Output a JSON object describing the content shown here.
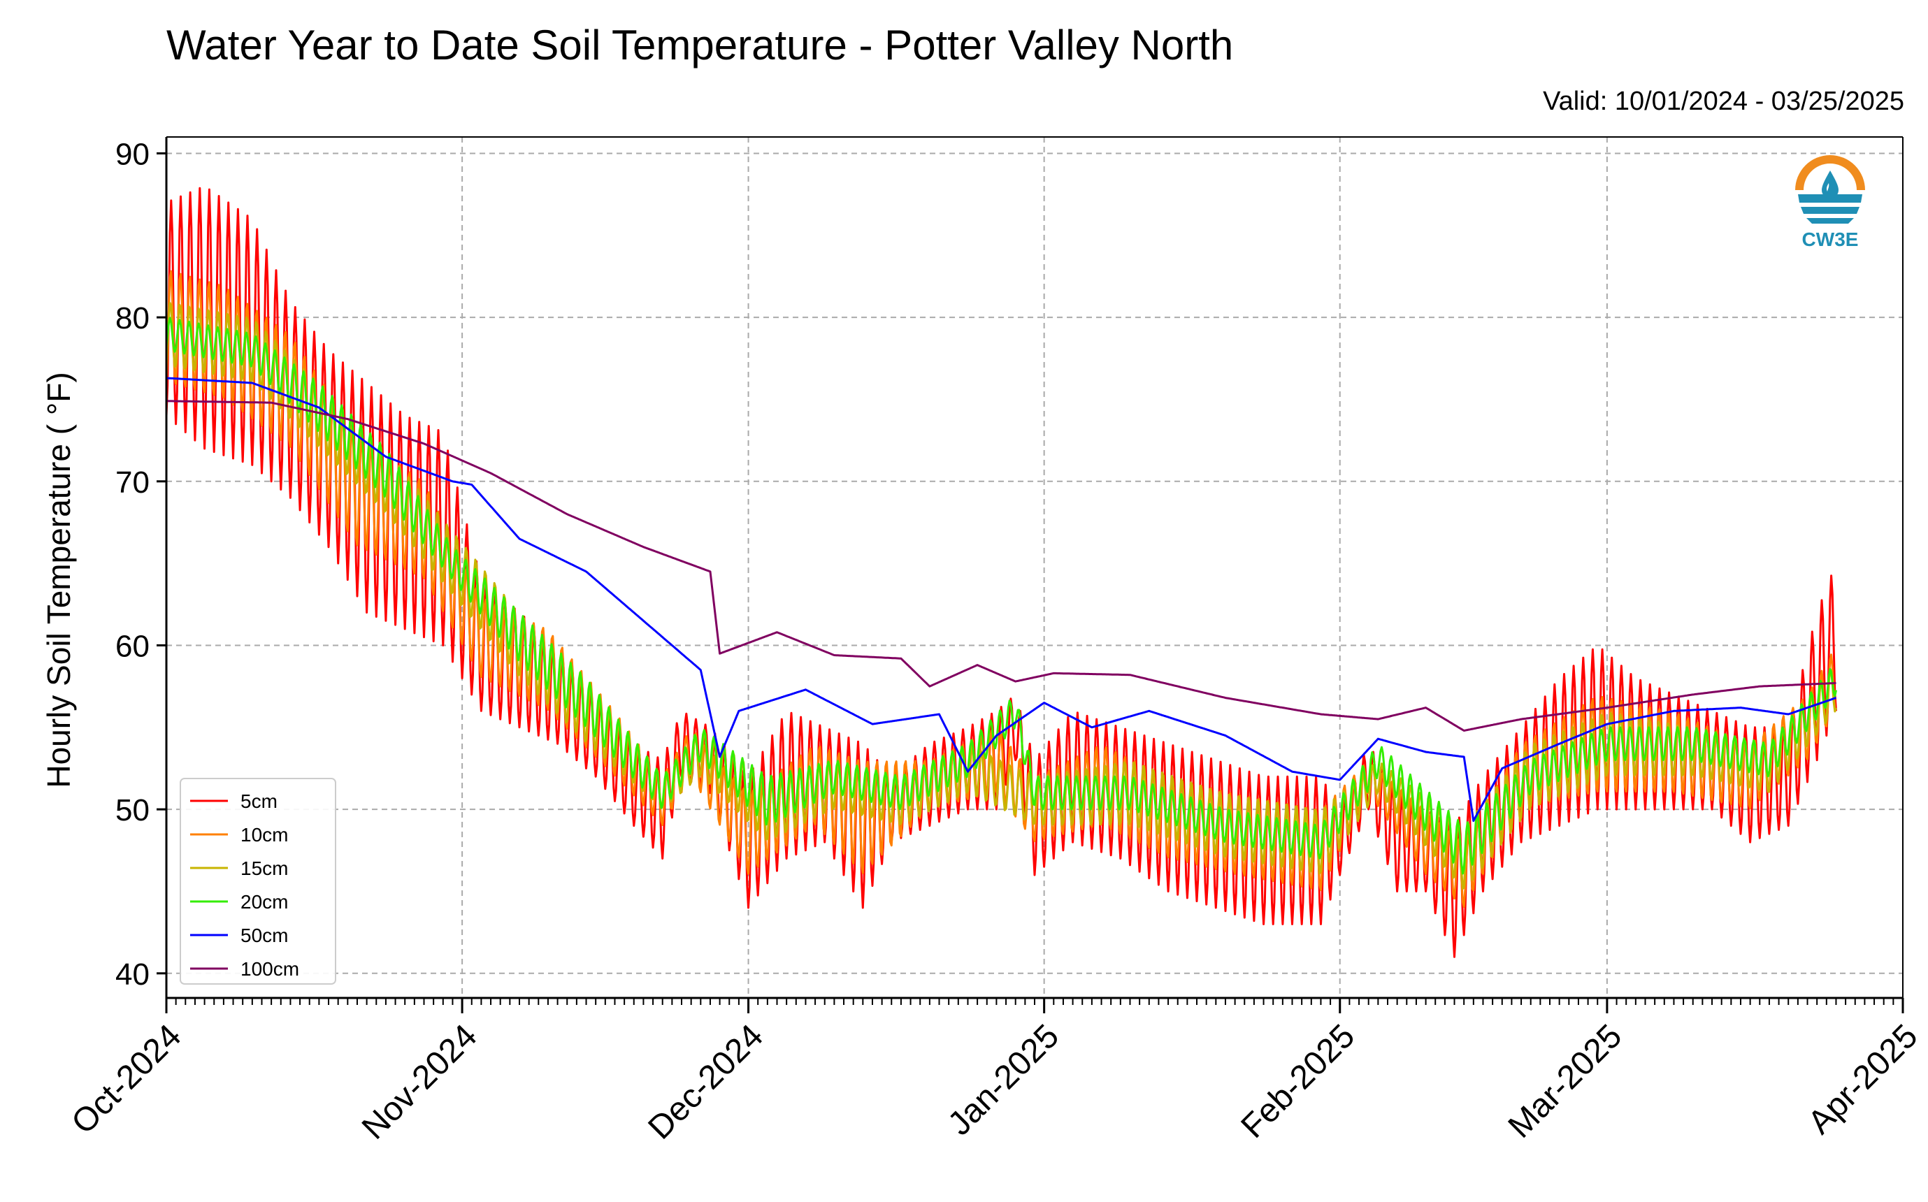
{
  "title": "Water Year to Date Soil Temperature - Potter Valley North",
  "valid_text": "Valid: 10/01/2024 - 03/25/2025",
  "logo_text": "CW3E",
  "logo_icon": "water-drop-sun-icon",
  "chart_data": {
    "type": "line",
    "title": "Water Year to Date Soil Temperature - Potter Valley North",
    "subtitle": "Valid: 10/01/2024 - 03/25/2025",
    "xlabel": "",
    "ylabel": "Hourly Soil Temperature ( $^\\circ$F)",
    "ylabel_display": "Hourly Soil Temperature ( °F)",
    "x_range": [
      "2024-10-01",
      "2025-04-01"
    ],
    "ylim": [
      38.5,
      91
    ],
    "yticks": [
      40,
      50,
      60,
      70,
      80,
      90
    ],
    "xtick_labels": [
      "Oct-2024",
      "Nov-2024",
      "Dec-2024",
      "Jan-2025",
      "Feb-2025",
      "Mar-2025",
      "Apr-2025"
    ],
    "xtick_dates": [
      "2024-10-01",
      "2024-11-01",
      "2024-12-01",
      "2025-01-01",
      "2025-02-01",
      "2025-03-01",
      "2025-04-01"
    ],
    "grid": true,
    "legend_position": "lower-left",
    "note": "Series are daily oscillating hourly readings; points give daily min/max envelope (lo, hi) in °F.",
    "series": [
      {
        "name": "5cm",
        "color": "#ff0000",
        "points": [
          [
            "2024-10-01",
            74,
            87
          ],
          [
            "2024-10-05",
            72,
            88
          ],
          [
            "2024-10-10",
            71,
            86
          ],
          [
            "2024-10-14",
            69,
            81
          ],
          [
            "2024-10-18",
            66,
            78
          ],
          [
            "2024-10-22",
            62,
            76
          ],
          [
            "2024-10-26",
            61,
            74
          ],
          [
            "2024-10-30",
            60,
            73
          ],
          [
            "2024-11-03",
            56,
            64
          ],
          [
            "2024-11-07",
            55,
            62
          ],
          [
            "2024-11-11",
            54,
            60
          ],
          [
            "2024-11-15",
            52,
            57
          ],
          [
            "2024-11-19",
            49,
            54
          ],
          [
            "2024-11-22",
            47,
            53
          ],
          [
            "2024-11-24",
            52,
            56
          ],
          [
            "2024-11-27",
            51,
            55
          ],
          [
            "2024-12-01",
            44,
            52
          ],
          [
            "2024-12-05",
            47,
            56
          ],
          [
            "2024-12-09",
            48,
            55
          ],
          [
            "2024-12-13",
            44,
            54
          ],
          [
            "2024-12-16",
            48,
            52
          ],
          [
            "2024-12-20",
            49,
            54
          ],
          [
            "2024-12-24",
            50,
            55
          ],
          [
            "2024-12-27",
            50,
            56
          ],
          [
            "2024-12-29",
            53,
            57
          ],
          [
            "2024-12-31",
            46,
            53
          ],
          [
            "2025-01-04",
            48,
            56
          ],
          [
            "2025-01-09",
            47,
            55
          ],
          [
            "2025-01-14",
            45,
            54
          ],
          [
            "2025-01-19",
            44,
            53
          ],
          [
            "2025-01-24",
            43,
            52
          ],
          [
            "2025-01-30",
            43,
            52
          ],
          [
            "2025-02-01",
            46,
            50
          ],
          [
            "2025-02-04",
            50,
            54
          ],
          [
            "2025-02-07",
            45,
            51
          ],
          [
            "2025-02-10",
            45,
            50
          ],
          [
            "2025-02-13",
            41,
            49
          ],
          [
            "2025-02-16",
            45,
            52
          ],
          [
            "2025-02-20",
            48,
            55
          ],
          [
            "2025-02-24",
            49,
            58
          ],
          [
            "2025-02-28",
            50,
            60
          ],
          [
            "2025-03-04",
            50,
            58
          ],
          [
            "2025-03-08",
            50,
            57
          ],
          [
            "2025-03-12",
            50,
            56
          ],
          [
            "2025-03-16",
            48,
            55
          ],
          [
            "2025-03-20",
            49,
            55
          ],
          [
            "2025-03-23",
            53,
            62
          ],
          [
            "2025-03-25",
            56,
            65
          ]
        ]
      },
      {
        "name": "10cm",
        "color": "#ff8000",
        "points": [
          [
            "2024-10-01",
            76,
            83
          ],
          [
            "2024-10-07",
            75,
            82
          ],
          [
            "2024-10-14",
            72,
            79
          ],
          [
            "2024-10-21",
            66,
            73
          ],
          [
            "2024-10-28",
            64,
            70
          ],
          [
            "2024-11-03",
            58,
            63
          ],
          [
            "2024-11-10",
            56,
            61
          ],
          [
            "2024-11-17",
            52,
            56
          ],
          [
            "2024-11-22",
            49,
            52
          ],
          [
            "2024-11-25",
            52,
            55
          ],
          [
            "2024-12-01",
            46,
            51
          ],
          [
            "2024-12-08",
            49,
            54
          ],
          [
            "2024-12-13",
            46,
            53
          ],
          [
            "2024-12-20",
            50,
            53
          ],
          [
            "2024-12-27",
            51,
            55
          ],
          [
            "2024-12-31",
            48,
            52
          ],
          [
            "2025-01-07",
            49,
            54
          ],
          [
            "2025-01-14",
            47,
            52
          ],
          [
            "2025-01-21",
            46,
            51
          ],
          [
            "2025-01-30",
            45,
            50
          ],
          [
            "2025-02-04",
            51,
            53
          ],
          [
            "2025-02-10",
            46,
            50
          ],
          [
            "2025-02-14",
            44,
            48
          ],
          [
            "2025-02-20",
            50,
            54
          ],
          [
            "2025-02-28",
            51,
            57
          ],
          [
            "2025-03-08",
            51,
            56
          ],
          [
            "2025-03-16",
            50,
            54
          ],
          [
            "2025-03-22",
            53,
            57
          ],
          [
            "2025-03-25",
            56,
            60
          ]
        ]
      },
      {
        "name": "15cm",
        "color": "#c8b400",
        "points": [
          [
            "2024-10-01",
            77,
            81
          ],
          [
            "2024-10-10",
            76,
            80
          ],
          [
            "2024-10-17",
            72,
            76
          ],
          [
            "2024-10-24",
            68,
            72
          ],
          [
            "2024-10-31",
            63,
            67
          ],
          [
            "2024-11-07",
            58,
            62
          ],
          [
            "2024-11-14",
            54,
            58
          ],
          [
            "2024-11-22",
            50,
            52
          ],
          [
            "2024-11-26",
            52,
            55
          ],
          [
            "2024-12-03",
            48,
            52
          ],
          [
            "2024-12-10",
            50,
            53
          ],
          [
            "2024-12-17",
            49,
            52
          ],
          [
            "2024-12-24",
            51,
            54
          ],
          [
            "2024-12-31",
            49,
            52
          ],
          [
            "2025-01-10",
            49,
            53
          ],
          [
            "2025-01-20",
            47,
            51
          ],
          [
            "2025-01-30",
            46,
            50
          ],
          [
            "2025-02-05",
            51,
            53
          ],
          [
            "2025-02-14",
            45,
            49
          ],
          [
            "2025-02-21",
            50,
            54
          ],
          [
            "2025-03-01",
            52,
            56
          ],
          [
            "2025-03-10",
            52,
            55
          ],
          [
            "2025-03-18",
            51,
            54
          ],
          [
            "2025-03-25",
            56,
            59
          ]
        ]
      },
      {
        "name": "20cm",
        "color": "#33ee00",
        "points": [
          [
            "2024-10-01",
            78,
            80
          ],
          [
            "2024-10-10",
            77,
            79
          ],
          [
            "2024-10-17",
            73,
            76
          ],
          [
            "2024-10-24",
            69,
            72
          ],
          [
            "2024-10-31",
            64,
            66
          ],
          [
            "2024-11-07",
            59,
            62
          ],
          [
            "2024-11-14",
            55,
            58
          ],
          [
            "2024-11-22",
            50,
            52
          ],
          [
            "2024-11-26",
            53,
            55
          ],
          [
            "2024-12-03",
            49,
            52
          ],
          [
            "2024-12-10",
            51,
            53
          ],
          [
            "2024-12-17",
            50,
            52
          ],
          [
            "2024-12-24",
            52,
            54
          ],
          [
            "2024-12-29",
            55,
            57
          ],
          [
            "2024-12-31",
            50,
            52
          ],
          [
            "2025-01-10",
            50,
            52
          ],
          [
            "2025-01-20",
            48,
            50
          ],
          [
            "2025-01-30",
            47,
            49
          ],
          [
            "2025-02-05",
            52,
            54
          ],
          [
            "2025-02-14",
            46,
            49
          ],
          [
            "2025-02-21",
            51,
            53
          ],
          [
            "2025-03-01",
            53,
            55
          ],
          [
            "2025-03-10",
            53,
            55
          ],
          [
            "2025-03-18",
            52,
            54
          ],
          [
            "2025-03-25",
            57,
            59
          ]
        ]
      },
      {
        "name": "50cm",
        "color": "#0000ff",
        "points": [
          [
            "2024-10-01",
            76.3,
            76.3
          ],
          [
            "2024-10-10",
            76.0,
            76.0
          ],
          [
            "2024-10-17",
            74.5,
            74.5
          ],
          [
            "2024-10-24",
            71.5,
            71.5
          ],
          [
            "2024-10-31",
            70.0,
            70.0
          ],
          [
            "2024-11-02",
            69.8,
            69.8
          ],
          [
            "2024-11-07",
            66.5,
            66.5
          ],
          [
            "2024-11-14",
            64.5,
            64.5
          ],
          [
            "2024-11-21",
            61.0,
            61.0
          ],
          [
            "2024-11-26",
            58.5,
            58.5
          ],
          [
            "2024-11-28",
            53.2,
            53.2
          ],
          [
            "2024-11-30",
            56.0,
            56.0
          ],
          [
            "2024-12-07",
            57.3,
            57.3
          ],
          [
            "2024-12-14",
            55.2,
            55.2
          ],
          [
            "2024-12-21",
            55.8,
            55.8
          ],
          [
            "2024-12-24",
            52.3,
            52.3
          ],
          [
            "2024-12-27",
            54.5,
            54.5
          ],
          [
            "2025-01-01",
            56.5,
            56.5
          ],
          [
            "2025-01-06",
            55.0,
            55.0
          ],
          [
            "2025-01-12",
            56.0,
            56.0
          ],
          [
            "2025-01-20",
            54.5,
            54.5
          ],
          [
            "2025-01-27",
            52.3,
            52.3
          ],
          [
            "2025-02-01",
            51.8,
            51.8
          ],
          [
            "2025-02-05",
            54.3,
            54.3
          ],
          [
            "2025-02-10",
            53.5,
            53.5
          ],
          [
            "2025-02-14",
            53.2,
            53.2
          ],
          [
            "2025-02-15",
            49.3,
            49.3
          ],
          [
            "2025-02-18",
            52.5,
            52.5
          ],
          [
            "2025-02-24",
            54.0,
            54.0
          ],
          [
            "2025-03-01",
            55.2,
            55.2
          ],
          [
            "2025-03-08",
            56.0,
            56.0
          ],
          [
            "2025-03-15",
            56.2,
            56.2
          ],
          [
            "2025-03-20",
            55.8,
            55.8
          ],
          [
            "2025-03-25",
            56.8,
            56.8
          ]
        ]
      },
      {
        "name": "100cm",
        "color": "#800060",
        "points": [
          [
            "2024-10-01",
            74.9,
            74.9
          ],
          [
            "2024-10-12",
            74.8,
            74.8
          ],
          [
            "2024-10-20",
            73.8,
            73.8
          ],
          [
            "2024-10-28",
            72.3,
            72.3
          ],
          [
            "2024-11-04",
            70.5,
            70.5
          ],
          [
            "2024-11-12",
            68.0,
            68.0
          ],
          [
            "2024-11-20",
            66.0,
            66.0
          ],
          [
            "2024-11-27",
            64.5,
            64.5
          ],
          [
            "2024-11-28",
            59.5,
            59.5
          ],
          [
            "2024-12-04",
            60.8,
            60.8
          ],
          [
            "2024-12-10",
            59.4,
            59.4
          ],
          [
            "2024-12-17",
            59.2,
            59.2
          ],
          [
            "2024-12-20",
            57.5,
            57.5
          ],
          [
            "2024-12-25",
            58.8,
            58.8
          ],
          [
            "2024-12-29",
            57.8,
            57.8
          ],
          [
            "2025-01-02",
            58.3,
            58.3
          ],
          [
            "2025-01-10",
            58.2,
            58.2
          ],
          [
            "2025-01-20",
            56.8,
            56.8
          ],
          [
            "2025-01-30",
            55.8,
            55.8
          ],
          [
            "2025-02-05",
            55.5,
            55.5
          ],
          [
            "2025-02-10",
            56.2,
            56.2
          ],
          [
            "2025-02-14",
            54.8,
            54.8
          ],
          [
            "2025-02-20",
            55.5,
            55.5
          ],
          [
            "2025-03-01",
            56.2,
            56.2
          ],
          [
            "2025-03-10",
            57.0,
            57.0
          ],
          [
            "2025-03-17",
            57.5,
            57.5
          ],
          [
            "2025-03-25",
            57.7,
            57.7
          ]
        ]
      }
    ]
  }
}
